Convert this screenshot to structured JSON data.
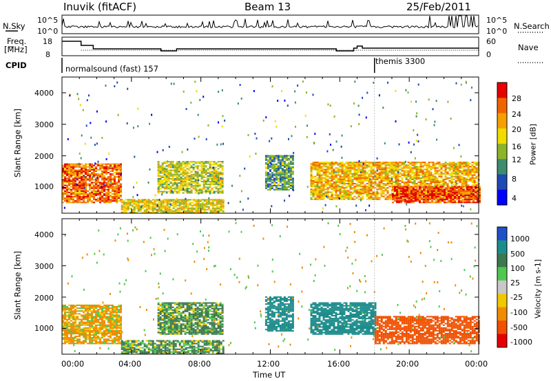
{
  "header": {
    "station": "Inuvik (fitACF)",
    "beam": "Beam 13",
    "date": "25/Feb/2011"
  },
  "panels": {
    "nsky": {
      "left_label": "N.Sky",
      "right_label": "N.Search",
      "left_ticks": [
        "10^5",
        "10^0"
      ],
      "right_ticks": [
        "10^5",
        "10^0"
      ]
    },
    "freq": {
      "left_label_1": "Freq.",
      "left_label_2": "[MHz]",
      "left_ticks": [
        "18",
        "8"
      ],
      "right_label": "Nave",
      "right_ticks": [
        "60",
        "0"
      ]
    },
    "cpid": {
      "label": "CPID",
      "modes": [
        {
          "name": "normalsound (fast) 157",
          "start_hour": 0
        },
        {
          "name": "themis 3300",
          "start_hour": 18
        }
      ]
    }
  },
  "chart_data": [
    {
      "type": "heatmap",
      "title": "Power",
      "ylabel": "Slant Range [km]",
      "xlabel": "",
      "x_ticks": [
        "00:00",
        "04:00",
        "08:00",
        "12:00",
        "16:00",
        "20:00",
        "00:00"
      ],
      "y_ticks": [
        "1000",
        "2000",
        "3000",
        "4000"
      ],
      "xlim_hours": [
        0,
        24
      ],
      "ylim_km": [
        180,
        4500
      ],
      "colorbar": {
        "label": "Power [dB]",
        "ticks": [
          "4",
          "8",
          "12",
          "16",
          "20",
          "24",
          "28"
        ],
        "colors": [
          "#0000ff",
          "#1e4ab4",
          "#3c8c6e",
          "#8cb428",
          "#f0dc00",
          "#f5a000",
          "#f06400",
          "#e60000"
        ]
      },
      "regions": [
        {
          "t0": 0.0,
          "t1": 3.4,
          "r0": 500,
          "r1": 1750,
          "value": 24
        },
        {
          "t0": 3.4,
          "t1": 9.3,
          "r0": 180,
          "r1": 600,
          "value": 18
        },
        {
          "t0": 5.5,
          "t1": 9.2,
          "r0": 800,
          "r1": 1800,
          "value": 16
        },
        {
          "t0": 11.7,
          "t1": 13.3,
          "r0": 900,
          "r1": 2000,
          "value": 12
        },
        {
          "t0": 14.3,
          "t1": 24.0,
          "r0": 600,
          "r1": 1800,
          "value": 20
        },
        {
          "t0": 19.0,
          "t1": 24.0,
          "r0": 500,
          "r1": 1000,
          "value": 26
        }
      ]
    },
    {
      "type": "heatmap",
      "title": "Velocity",
      "ylabel": "Slant Range [km]",
      "xlabel": "Time UT",
      "x_ticks": [
        "00:00",
        "04:00",
        "08:00",
        "12:00",
        "16:00",
        "20:00",
        "00:00"
      ],
      "y_ticks": [
        "1000",
        "2000",
        "3000",
        "4000"
      ],
      "xlim_hours": [
        0,
        24
      ],
      "ylim_km": [
        180,
        4500
      ],
      "colorbar": {
        "label": "Velocity [m s-1]",
        "ticks": [
          "1000",
          "500",
          "100",
          "25",
          "-25",
          "-100",
          "-500",
          "-1000"
        ],
        "colors": [
          "#1e50c8",
          "#1e8c8c",
          "#3c7850",
          "#50c850",
          "#c8c8c8",
          "#f0c800",
          "#f08c00",
          "#f05000",
          "#e60000"
        ]
      },
      "regions": [
        {
          "t0": 0.0,
          "t1": 3.4,
          "r0": 500,
          "r1": 1750,
          "value": -100
        },
        {
          "t0": 3.4,
          "t1": 9.3,
          "r0": 180,
          "r1": 600,
          "value": 100
        },
        {
          "t0": 5.5,
          "t1": 9.2,
          "r0": 800,
          "r1": 1800,
          "value": 100
        },
        {
          "t0": 11.7,
          "t1": 13.3,
          "r0": 900,
          "r1": 2000,
          "value": 500
        },
        {
          "t0": 14.3,
          "t1": 18.0,
          "r0": 800,
          "r1": 1800,
          "value": 500
        },
        {
          "t0": 18.0,
          "t1": 24.0,
          "r0": 500,
          "r1": 1400,
          "value": -500
        }
      ]
    }
  ]
}
